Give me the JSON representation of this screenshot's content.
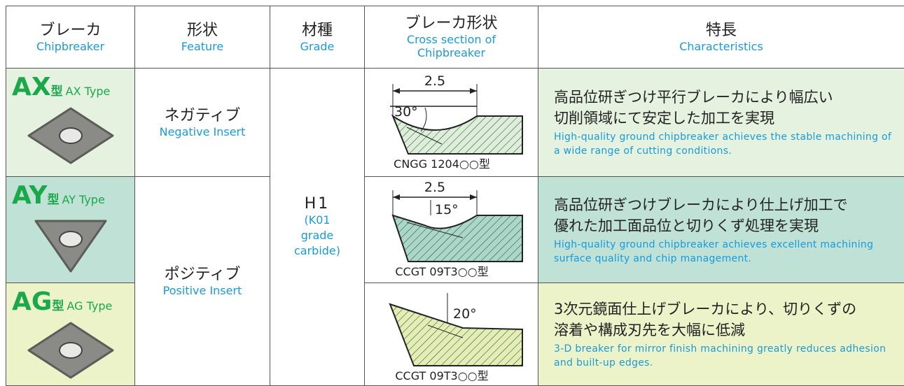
{
  "header": [
    {
      "ja": "ブレーカ",
      "en": "Chipbreaker"
    },
    {
      "ja": "形状",
      "en": "Feature"
    },
    {
      "ja": "材種",
      "en": "Grade"
    },
    {
      "ja": "ブレーカ形状",
      "en": "Cross section of Chipbreaker"
    },
    {
      "ja": "特長",
      "en": "Characteristics"
    }
  ],
  "features": [
    {
      "ja": "ネガティブ",
      "en": "Negative Insert"
    },
    {
      "ja": "ポジティブ",
      "en": "Positive Insert"
    }
  ],
  "grade": {
    "name": "H1",
    "note": "(K01 grade carbide)"
  },
  "rows": [
    {
      "code": "AX",
      "suffix": "型",
      "type_label": "AX Type",
      "cross_section": {
        "dimension": "2.5",
        "angle": "30°",
        "model": "CNGG 1204○○型"
      },
      "characteristics": {
        "ja": [
          "高品位研ぎつけ平行ブレーカにより幅広い",
          "切削領域にて安定した加工を実現"
        ],
        "en": "High-quality ground chipbreaker achieves the stable machining of a wide range of cutting conditions."
      }
    },
    {
      "code": "AY",
      "suffix": "型",
      "type_label": "AY Type",
      "cross_section": {
        "dimension": "2.5",
        "angle": "15°",
        "model": "CCGT 09T3○○型"
      },
      "characteristics": {
        "ja": [
          "高品位研ぎつけブレーカにより仕上げ加工で",
          "優れた加工面品位と切りくず処理を実現"
        ],
        "en": "High-quality ground chipbreaker achieves excellent machining surface quality and chip management."
      }
    },
    {
      "code": "AG",
      "suffix": "型",
      "type_label": "AG Type",
      "cross_section": {
        "angle": "20°",
        "model": "CCGT 09T3○○型"
      },
      "characteristics": {
        "ja": [
          "3次元鏡面仕上げブレーカにより、切りくずの",
          "溶着や構成刃先を大幅に低減"
        ],
        "en": "3-D breaker for mirror finish machining greatly reduces adhesion and built-up edges."
      }
    }
  ]
}
